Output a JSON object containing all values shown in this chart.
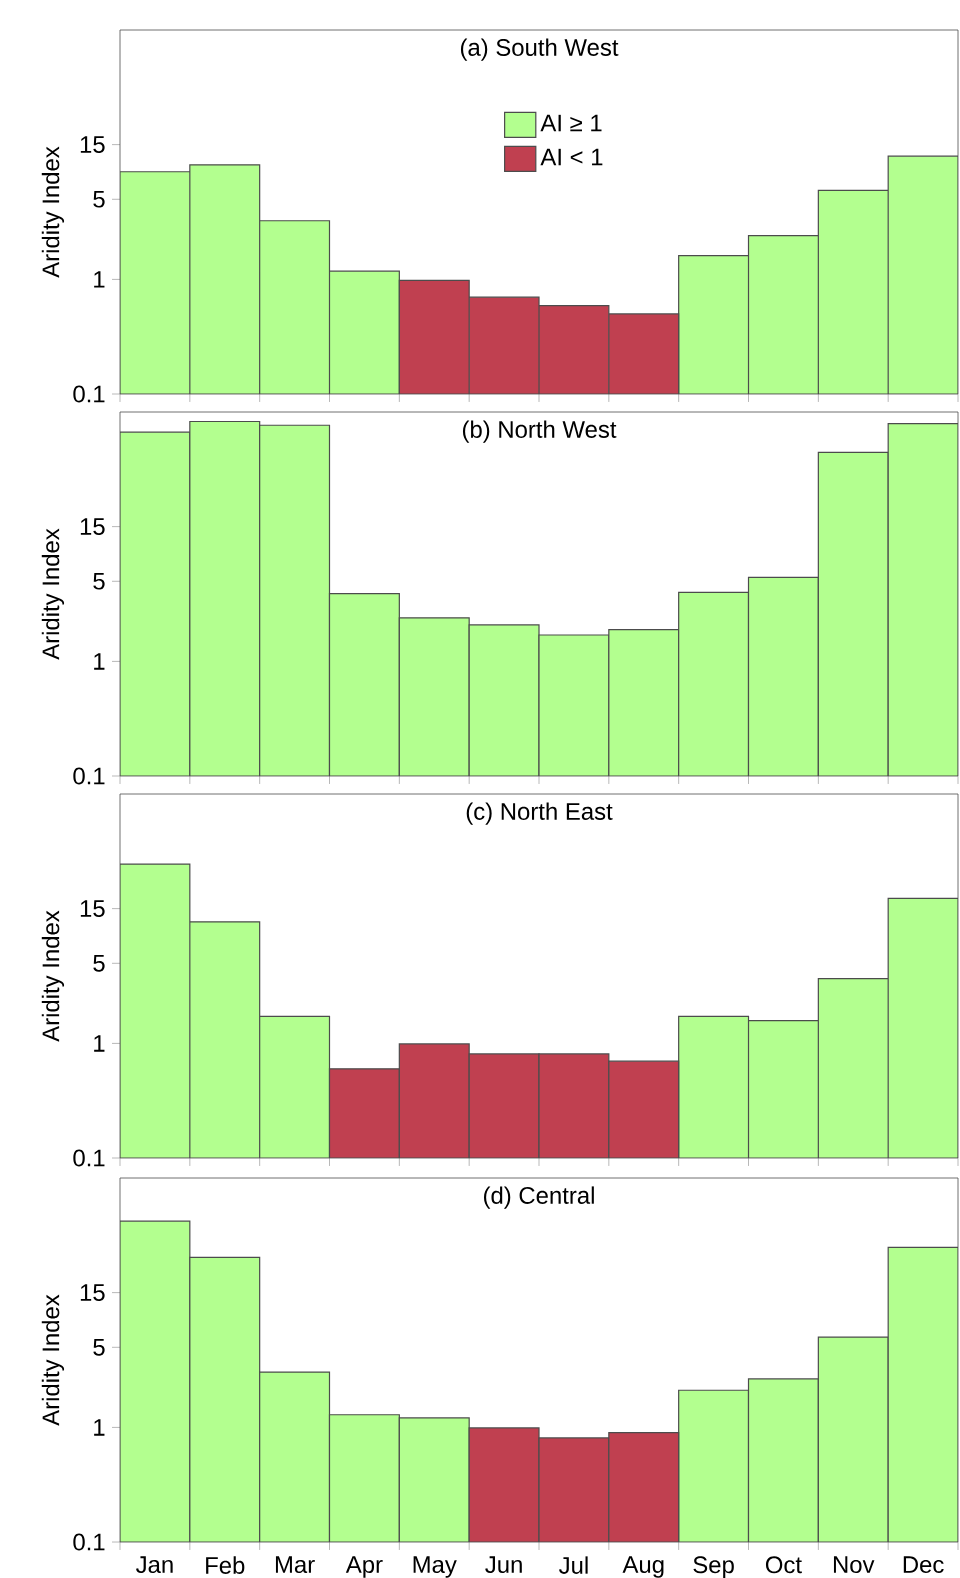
{
  "chart_data": [
    {
      "type": "bar",
      "title": "(a) South West",
      "ylabel": "Aridity Index",
      "categories": [
        null,
        null,
        null,
        null,
        null,
        null,
        null,
        null,
        null,
        null,
        null,
        null
      ],
      "series": [
        {
          "name": "AI ≥ 1",
          "color": "#b3ff8f",
          "values": [
            8.7,
            10.0,
            3.25,
            1.18,
            null,
            null,
            null,
            null,
            1.61,
            2.41,
            5.98,
            11.9
          ]
        },
        {
          "name": "AI < 1",
          "color": "#c04050",
          "values": [
            null,
            null,
            null,
            null,
            0.98,
            0.7,
            0.59,
            0.5,
            null,
            null,
            null,
            null
          ]
        }
      ],
      "stacked": true,
      "log": true,
      "ylim": [
        0.1,
        150
      ],
      "yticks": [
        0.1,
        1,
        5,
        15
      ],
      "legend": "top",
      "tick_labels": "y"
    },
    {
      "type": "bar",
      "title": "(b) North West",
      "ylabel": "Aridity Index",
      "categories": [
        null,
        null,
        null,
        null,
        null,
        null,
        null,
        null,
        null,
        null,
        null,
        null
      ],
      "series": [
        {
          "color": "#b3ff8f",
          "values": [
            100,
            124,
            115,
            3.9,
            2.4,
            2.08,
            1.7,
            1.89,
            4.0,
            5.4,
            66.6,
            119
          ]
        }
      ],
      "log": true,
      "ylim": [
        0.1,
        150
      ],
      "yticks": [
        0.1,
        1,
        5,
        15
      ],
      "tick_labels": "y"
    },
    {
      "type": "bar",
      "title": "(c) North East",
      "ylabel": "Aridity Index",
      "categories": [
        null,
        null,
        null,
        null,
        null,
        null,
        null,
        null,
        null,
        null,
        null,
        null
      ],
      "series": [
        {
          "color": "#b3ff8f",
          "values": [
            36.7,
            11.5,
            1.72,
            null,
            null,
            null,
            null,
            null,
            1.72,
            1.58,
            3.67,
            18.4
          ]
        },
        {
          "color": "#c04050",
          "values": [
            null,
            null,
            null,
            0.6,
            0.99,
            0.81,
            0.81,
            0.7,
            null,
            null,
            null,
            null
          ]
        }
      ],
      "stacked": true,
      "log": true,
      "ylim": [
        0.1,
        150
      ],
      "yticks": [
        0.1,
        1,
        5,
        15
      ],
      "tick_labels": "y"
    },
    {
      "type": "bar",
      "title": "(d) Central",
      "ylabel": "Aridity Index",
      "categories": [
        "Jan",
        "Feb",
        "Mar",
        "Apr",
        "May",
        "Jun",
        "Jul",
        "Aug",
        "Sep",
        "Oct",
        "Nov",
        "Dec"
      ],
      "series": [
        {
          "color": "#b3ff8f",
          "values": [
            63,
            30.4,
            3.04,
            1.29,
            1.21,
            null,
            null,
            null,
            2.11,
            2.65,
            6.14,
            37.2
          ]
        },
        {
          "color": "#c04050",
          "values": [
            null,
            null,
            null,
            null,
            null,
            0.99,
            0.81,
            0.9,
            null,
            null,
            null,
            null
          ]
        }
      ],
      "stacked": true,
      "log": true,
      "ylim": [
        0.1,
        150
      ],
      "yticks": [
        0.1,
        1,
        5,
        15
      ]
    }
  ]
}
